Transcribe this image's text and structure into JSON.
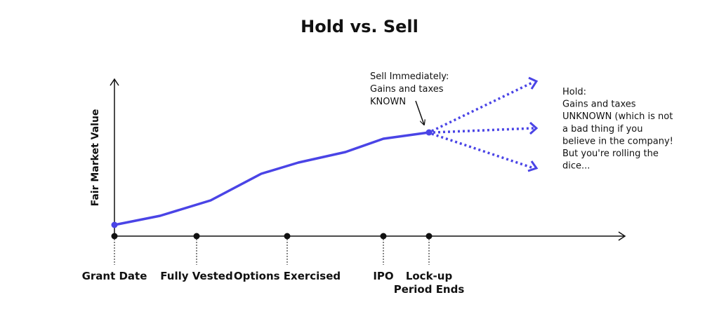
{
  "title": "Hold vs. Sell",
  "y_axis_label": "Fair Market Value",
  "milestones": [
    {
      "lines": [
        "Grant Date"
      ]
    },
    {
      "lines": [
        "Fully Vested"
      ]
    },
    {
      "lines": [
        "Options Exercised"
      ]
    },
    {
      "lines": [
        "IPO"
      ]
    },
    {
      "lines": [
        "Lock-up",
        "Period Ends"
      ]
    }
  ],
  "sell_note": {
    "lines": [
      "Sell Immediately:",
      "Gains and taxes",
      "KNOWN"
    ]
  },
  "hold_note": {
    "lines": [
      "Hold:",
      "Gains and taxes",
      "UNKNOWN (which is not",
      "a bad thing if you",
      "believe in the company!",
      "But you're rolling the",
      "dice..."
    ]
  }
}
